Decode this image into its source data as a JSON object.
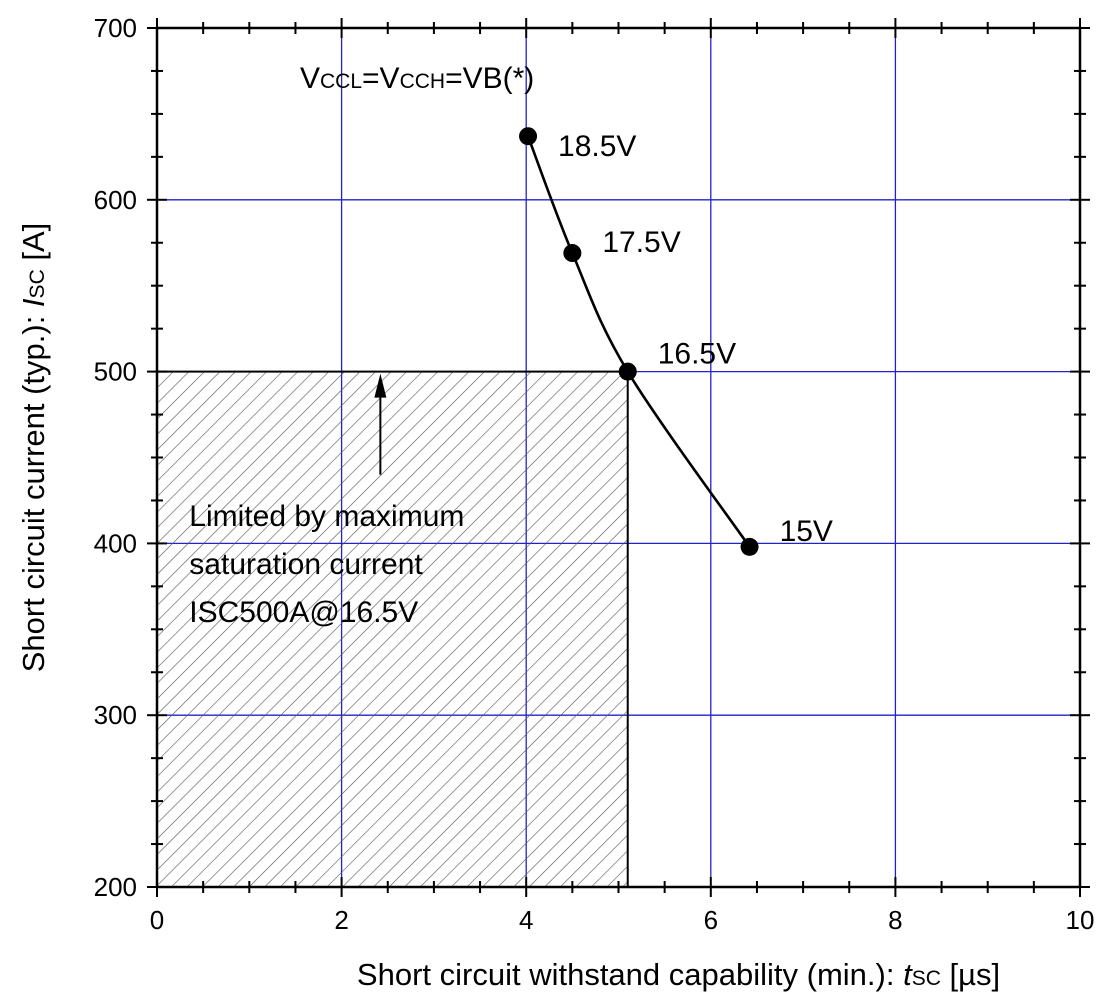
{
  "chart_data": {
    "type": "line",
    "x_axis": {
      "label_prefix": "Short circuit withstand capability (min.): ",
      "label_var": "t",
      "label_sub": "SC",
      "label_suffix": " [µs]",
      "xlim": [
        0,
        10
      ],
      "ticks": [
        "0",
        "2",
        "4",
        "6",
        "8",
        "10"
      ]
    },
    "y_axis": {
      "label_prefix": "Short circuit current (typ.): ",
      "label_var": "I",
      "label_sub": "SC",
      "label_suffix": " [A]",
      "ylim": [
        200,
        700
      ],
      "ticks": [
        "200",
        "300",
        "400",
        "500",
        "600",
        "700"
      ]
    },
    "grid": true,
    "grid_color": "#2222cc",
    "curve_color": "#000000",
    "series": [
      {
        "x": [
          4.02,
          4.5,
          5.1,
          6.42
        ],
        "y": [
          637,
          569,
          500,
          398
        ],
        "labels": [
          "18.5V",
          "17.5V",
          "16.5V",
          "15V"
        ]
      }
    ],
    "header_note": {
      "p1": "V",
      "s1": "CCL",
      "p2": "=V",
      "s2": "CCH",
      "p3": "=VB(*)"
    },
    "limited_region": {
      "x": [
        0,
        5.1
      ],
      "y": [
        200,
        500
      ],
      "text": [
        "Limited by maximum",
        "saturation current",
        "ISC500A@16.5V"
      ],
      "arrow_x": 2.42,
      "arrow_y": [
        440,
        500
      ]
    }
  }
}
